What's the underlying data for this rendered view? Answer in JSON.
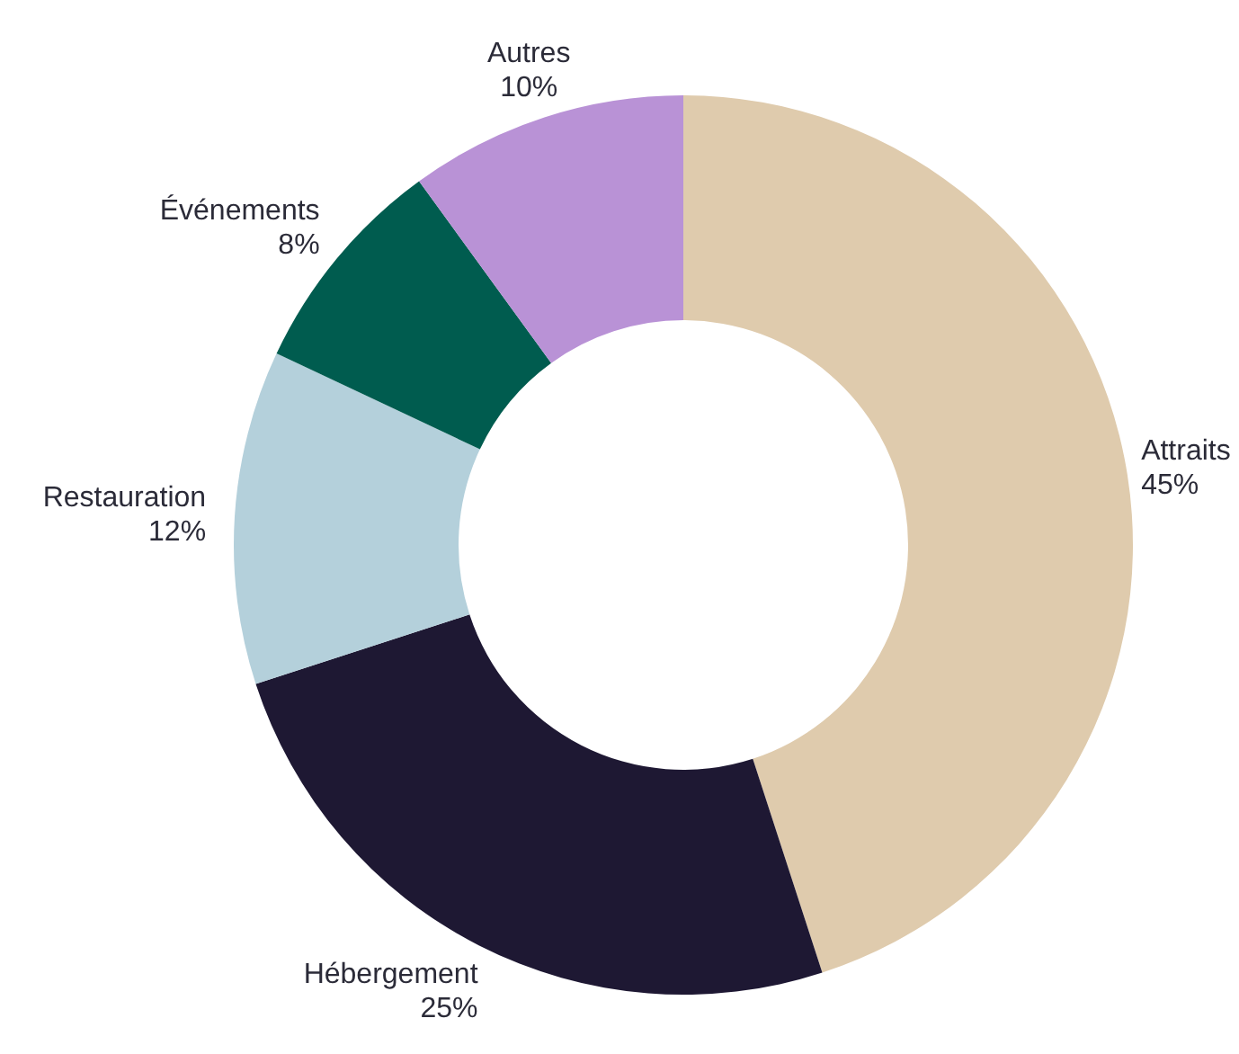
{
  "chart_data": {
    "type": "donut",
    "categories": [
      "Attraits",
      "Hébergement",
      "Restauration",
      "Événements",
      "Autres"
    ],
    "values": [
      45,
      25,
      12,
      8,
      10
    ],
    "colors": [
      "#dfcbad",
      "#1e1833",
      "#b4d0db",
      "#005c4f",
      "#b992d6"
    ],
    "value_labels": [
      "45%",
      "25%",
      "12%",
      "8%",
      "10%"
    ]
  }
}
